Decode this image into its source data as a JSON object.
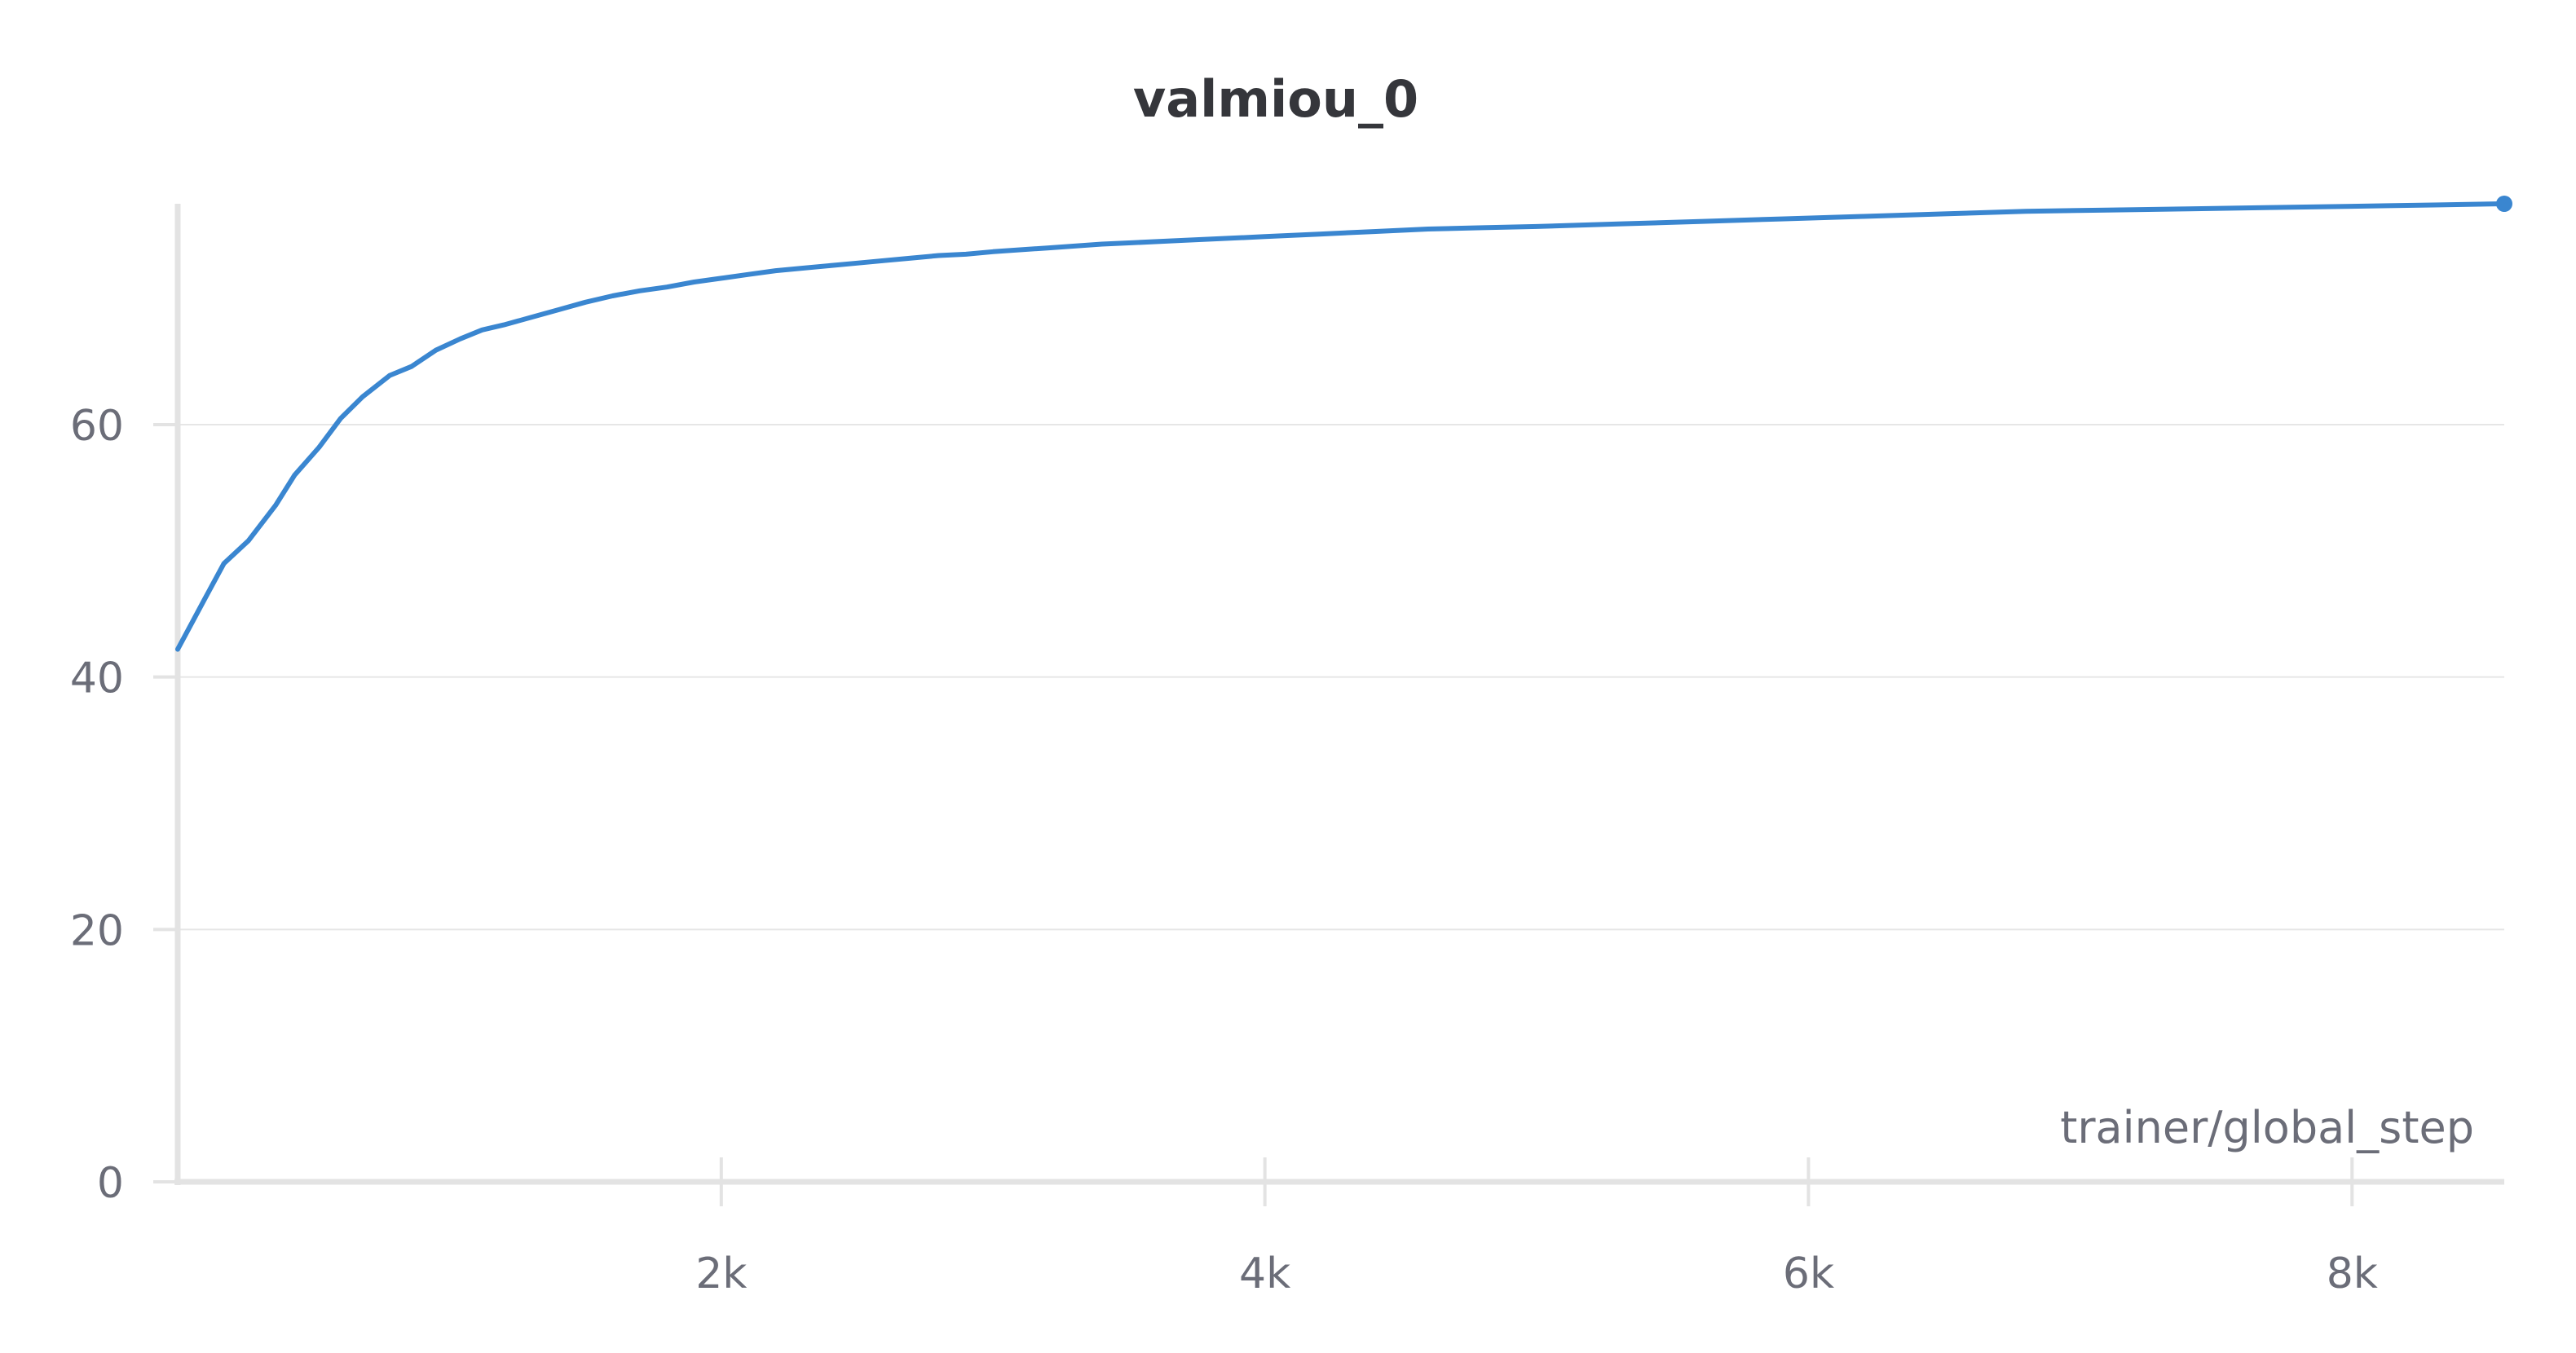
{
  "chart_data": {
    "type": "line",
    "title": "valmiou_0",
    "xlabel": "trainer/global_step",
    "ylabel": "",
    "xlim": [
      0,
      8560
    ],
    "ylim": [
      0,
      77.5
    ],
    "x_ticks": [
      2000,
      4000,
      6000,
      8000
    ],
    "x_tick_labels": [
      "2k",
      "4k",
      "6k",
      "8k"
    ],
    "y_ticks": [
      0,
      20,
      40,
      60
    ],
    "y_tick_labels": [
      "0",
      "20",
      "40",
      "60"
    ],
    "grid": "horizontal",
    "legend": "none",
    "colors": {
      "line": "#3a86d0",
      "grid": "#e6e6e6",
      "axis": "#e3e3e3"
    },
    "series": [
      {
        "x": [
          0,
          100,
          170,
          260,
          360,
          430,
          520,
          600,
          680,
          780,
          860,
          950,
          1040,
          1120,
          1200,
          1300,
          1400,
          1500,
          1600,
          1700,
          1800,
          1900,
          2000,
          2100,
          2200,
          2300,
          2400,
          2500,
          2600,
          2700,
          2800,
          2900,
          3000,
          3200,
          3400,
          3500,
          3700,
          4000,
          4200,
          4400,
          4600,
          4800,
          5000,
          5300,
          5600,
          5900,
          6200,
          6500,
          6800,
          7100,
          7400,
          7700,
          8000,
          8300,
          8560
        ],
        "y": [
          42.2,
          46.2,
          49.0,
          50.8,
          53.6,
          56.0,
          58.2,
          60.5,
          62.2,
          63.9,
          64.6,
          65.9,
          66.8,
          67.5,
          67.9,
          68.5,
          69.1,
          69.7,
          70.2,
          70.6,
          70.9,
          71.3,
          71.6,
          71.9,
          72.2,
          72.4,
          72.6,
          72.8,
          73.0,
          73.2,
          73.4,
          73.5,
          73.7,
          74.0,
          74.3,
          74.4,
          74.6,
          74.9,
          75.1,
          75.3,
          75.5,
          75.6,
          75.7,
          75.9,
          76.1,
          76.3,
          76.5,
          76.7,
          76.9,
          77.0,
          77.1,
          77.2,
          77.3,
          77.4,
          77.5
        ]
      }
    ]
  }
}
